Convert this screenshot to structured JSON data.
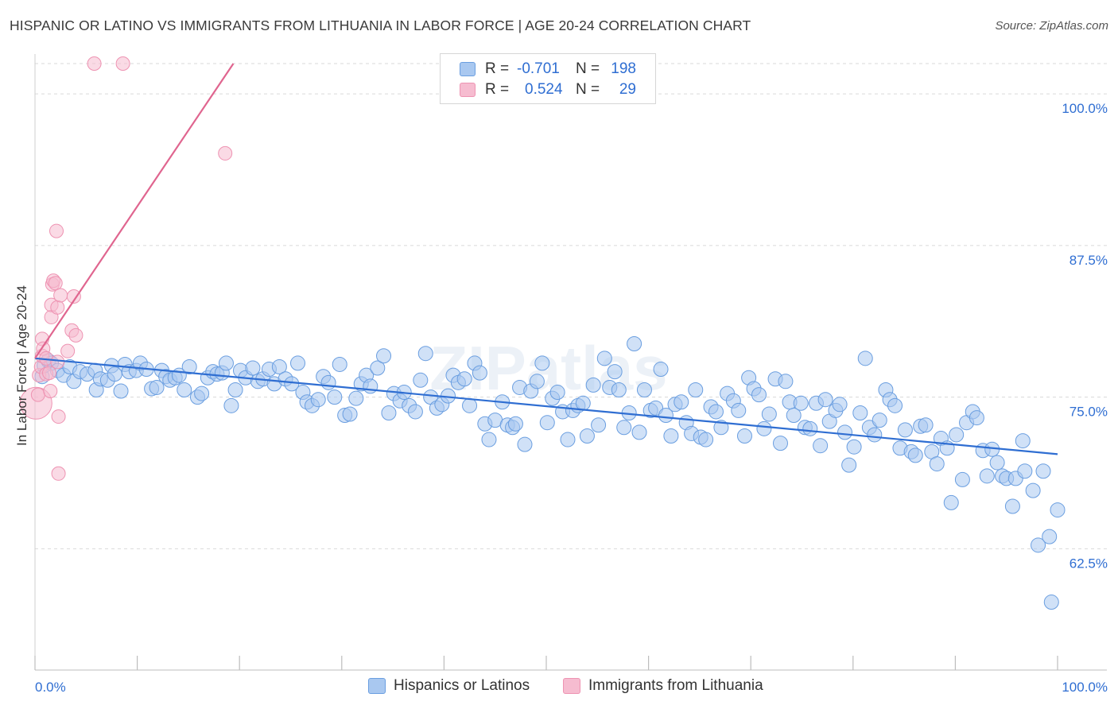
{
  "title": "HISPANIC OR LATINO VS IMMIGRANTS FROM LITHUANIA IN LABOR FORCE | AGE 20-24 CORRELATION CHART",
  "source": "Source: ZipAtlas.com",
  "colors": {
    "blue": "#2f6ed2",
    "blue_fill": "#a9c8f0",
    "blue_stroke": "#6a9ee0",
    "pink": "#e0658f",
    "pink_fill": "#f6bcd0",
    "pink_stroke": "#ee93b2",
    "tick_label": "#2f6ed2",
    "grid": "#d9d9d9"
  },
  "legend": {
    "r_label": "R =",
    "n_label": "N =",
    "rows": [
      {
        "r": "-0.701",
        "n": "198"
      },
      {
        "r": "0.524",
        "n": "29"
      }
    ]
  },
  "chart_data": {
    "type": "scatter",
    "title": "HISPANIC OR LATINO VS IMMIGRANTS FROM LITHUANIA IN LABOR FORCE | AGE 20-24 CORRELATION CHART",
    "xlabel": "",
    "ylabel": "In Labor Force | Age 20-24",
    "xlim": [
      0,
      100
    ],
    "ylim": [
      52.5,
      102.5
    ],
    "x_tick_labels": [
      "0.0%",
      "100.0%"
    ],
    "y_ticks": [
      62.5,
      75.0,
      87.5,
      100.0
    ],
    "y_tick_labels": [
      "62.5%",
      "75.0%",
      "87.5%",
      "100.0%"
    ],
    "grid": true,
    "legend_position": "bottom",
    "series": [
      {
        "name": "Hispanics or Latinos",
        "color": "#2f6ed2",
        "trend": {
          "x": [
            0,
            100
          ],
          "y": [
            78.2,
            70.3
          ]
        },
        "points": [
          [
            0.7,
            76.7
          ],
          [
            0.9,
            77.6
          ],
          [
            1.3,
            78.0
          ],
          [
            1.6,
            77.8
          ],
          [
            2.2,
            77.2
          ],
          [
            2.8,
            76.8
          ],
          [
            3.4,
            77.5
          ],
          [
            3.8,
            76.3
          ],
          [
            4.4,
            77.1
          ],
          [
            5.1,
            76.9
          ],
          [
            5.9,
            77.2
          ],
          [
            6.0,
            75.6
          ],
          [
            6.4,
            76.5
          ],
          [
            7.1,
            76.4
          ],
          [
            7.5,
            77.6
          ],
          [
            7.8,
            76.9
          ],
          [
            8.4,
            75.5
          ],
          [
            8.8,
            77.7
          ],
          [
            9.2,
            77.1
          ],
          [
            9.9,
            77.2
          ],
          [
            10.3,
            77.8
          ],
          [
            10.9,
            77.3
          ],
          [
            11.4,
            75.7
          ],
          [
            11.9,
            75.8
          ],
          [
            12.4,
            77.2
          ],
          [
            12.8,
            76.7
          ],
          [
            13.2,
            76.4
          ],
          [
            13.7,
            76.6
          ],
          [
            14.1,
            76.8
          ],
          [
            14.6,
            75.6
          ],
          [
            15.1,
            77.5
          ],
          [
            15.9,
            75.0
          ],
          [
            16.3,
            75.3
          ],
          [
            16.9,
            76.6
          ],
          [
            17.4,
            77.1
          ],
          [
            17.8,
            76.9
          ],
          [
            18.3,
            77.0
          ],
          [
            18.7,
            77.8
          ],
          [
            19.2,
            74.3
          ],
          [
            19.6,
            75.6
          ],
          [
            20.1,
            77.2
          ],
          [
            20.6,
            76.6
          ],
          [
            21.3,
            77.4
          ],
          [
            21.8,
            76.3
          ],
          [
            22.3,
            76.5
          ],
          [
            22.9,
            77.3
          ],
          [
            23.4,
            76.1
          ],
          [
            23.9,
            77.5
          ],
          [
            24.5,
            76.5
          ],
          [
            25.1,
            76.1
          ],
          [
            25.7,
            77.8
          ],
          [
            26.2,
            75.4
          ],
          [
            26.6,
            74.6
          ],
          [
            27.1,
            74.3
          ],
          [
            27.7,
            74.8
          ],
          [
            28.2,
            76.7
          ],
          [
            28.7,
            76.2
          ],
          [
            29.3,
            75.0
          ],
          [
            29.8,
            77.7
          ],
          [
            30.3,
            73.5
          ],
          [
            30.8,
            73.6
          ],
          [
            31.4,
            74.9
          ],
          [
            31.9,
            76.1
          ],
          [
            32.4,
            76.8
          ],
          [
            32.8,
            75.9
          ],
          [
            33.5,
            77.4
          ],
          [
            34.1,
            78.4
          ],
          [
            34.6,
            73.7
          ],
          [
            35.1,
            75.3
          ],
          [
            35.7,
            74.7
          ],
          [
            36.1,
            75.4
          ],
          [
            36.6,
            74.3
          ],
          [
            37.2,
            73.8
          ],
          [
            37.7,
            76.4
          ],
          [
            38.2,
            78.6
          ],
          [
            38.7,
            75.0
          ],
          [
            39.3,
            74.1
          ],
          [
            39.8,
            74.4
          ],
          [
            40.4,
            75.1
          ],
          [
            40.9,
            76.8
          ],
          [
            41.4,
            76.2
          ],
          [
            42.0,
            76.5
          ],
          [
            42.5,
            74.3
          ],
          [
            43.0,
            77.8
          ],
          [
            43.5,
            77.0
          ],
          [
            44.0,
            72.8
          ],
          [
            44.4,
            71.5
          ],
          [
            45.0,
            73.1
          ],
          [
            45.7,
            74.6
          ],
          [
            46.2,
            72.7
          ],
          [
            46.7,
            72.5
          ],
          [
            47.0,
            72.8
          ],
          [
            47.4,
            75.8
          ],
          [
            47.9,
            71.1
          ],
          [
            48.5,
            75.5
          ],
          [
            49.1,
            76.3
          ],
          [
            49.6,
            77.8
          ],
          [
            50.1,
            72.9
          ],
          [
            50.6,
            74.9
          ],
          [
            51.1,
            75.4
          ],
          [
            51.6,
            73.8
          ],
          [
            52.1,
            71.5
          ],
          [
            52.6,
            73.9
          ],
          [
            53.1,
            74.3
          ],
          [
            53.6,
            74.5
          ],
          [
            54.0,
            71.8
          ],
          [
            54.6,
            76.0
          ],
          [
            55.1,
            72.7
          ],
          [
            55.7,
            78.2
          ],
          [
            56.2,
            75.8
          ],
          [
            56.7,
            77.1
          ],
          [
            57.1,
            75.6
          ],
          [
            57.6,
            72.5
          ],
          [
            58.1,
            73.7
          ],
          [
            58.6,
            79.4
          ],
          [
            59.1,
            72.1
          ],
          [
            59.6,
            75.6
          ],
          [
            60.2,
            73.9
          ],
          [
            60.7,
            74.1
          ],
          [
            61.2,
            77.3
          ],
          [
            61.7,
            73.5
          ],
          [
            62.2,
            71.8
          ],
          [
            62.6,
            74.4
          ],
          [
            63.2,
            74.6
          ],
          [
            63.7,
            72.9
          ],
          [
            64.2,
            72.0
          ],
          [
            64.6,
            75.6
          ],
          [
            65.1,
            71.7
          ],
          [
            65.6,
            71.5
          ],
          [
            66.1,
            74.2
          ],
          [
            66.6,
            73.8
          ],
          [
            67.1,
            72.5
          ],
          [
            67.7,
            75.3
          ],
          [
            68.3,
            74.7
          ],
          [
            68.8,
            73.9
          ],
          [
            69.4,
            71.8
          ],
          [
            69.8,
            76.6
          ],
          [
            70.3,
            75.7
          ],
          [
            70.8,
            75.2
          ],
          [
            71.3,
            72.4
          ],
          [
            71.8,
            73.6
          ],
          [
            72.4,
            76.5
          ],
          [
            72.9,
            71.2
          ],
          [
            73.4,
            76.3
          ],
          [
            73.8,
            74.6
          ],
          [
            74.2,
            73.5
          ],
          [
            74.9,
            74.5
          ],
          [
            75.3,
            72.5
          ],
          [
            75.8,
            72.4
          ],
          [
            76.4,
            74.5
          ],
          [
            76.8,
            71.0
          ],
          [
            77.3,
            74.8
          ],
          [
            77.7,
            73.0
          ],
          [
            78.3,
            73.9
          ],
          [
            78.7,
            74.4
          ],
          [
            79.2,
            72.1
          ],
          [
            79.6,
            69.4
          ],
          [
            80.1,
            70.9
          ],
          [
            80.7,
            73.7
          ],
          [
            81.2,
            78.2
          ],
          [
            81.6,
            72.5
          ],
          [
            82.1,
            71.9
          ],
          [
            82.6,
            73.1
          ],
          [
            83.2,
            75.6
          ],
          [
            83.6,
            74.8
          ],
          [
            84.1,
            74.3
          ],
          [
            84.6,
            70.8
          ],
          [
            85.1,
            72.3
          ],
          [
            85.7,
            70.5
          ],
          [
            86.1,
            70.2
          ],
          [
            86.6,
            72.6
          ],
          [
            87.1,
            72.7
          ],
          [
            87.7,
            70.5
          ],
          [
            88.2,
            69.5
          ],
          [
            88.6,
            71.6
          ],
          [
            89.2,
            70.8
          ],
          [
            89.6,
            66.3
          ],
          [
            90.1,
            71.9
          ],
          [
            90.7,
            68.2
          ],
          [
            91.1,
            72.9
          ],
          [
            91.7,
            73.8
          ],
          [
            92.1,
            73.3
          ],
          [
            92.7,
            70.6
          ],
          [
            93.1,
            68.5
          ],
          [
            93.6,
            70.7
          ],
          [
            94.1,
            69.6
          ],
          [
            94.6,
            68.5
          ],
          [
            95.0,
            68.3
          ],
          [
            95.6,
            66.0
          ],
          [
            95.9,
            68.3
          ],
          [
            96.6,
            71.4
          ],
          [
            96.8,
            68.9
          ],
          [
            97.6,
            67.3
          ],
          [
            98.1,
            62.8
          ],
          [
            98.6,
            68.9
          ],
          [
            99.2,
            63.5
          ],
          [
            99.4,
            58.1
          ],
          [
            100.0,
            65.7
          ]
        ]
      },
      {
        "name": "Immigrants from Lithuania",
        "color": "#e0658f",
        "trend": {
          "x": [
            0,
            19.4
          ],
          "y": [
            78.2,
            102.5
          ]
        },
        "points": [
          [
            0.1,
            74.5
          ],
          [
            0.3,
            75.2
          ],
          [
            0.4,
            76.8
          ],
          [
            0.6,
            77.5
          ],
          [
            0.7,
            78.4
          ],
          [
            0.7,
            79.8
          ],
          [
            0.8,
            79.0
          ],
          [
            1.1,
            76.9
          ],
          [
            1.1,
            78.2
          ],
          [
            1.4,
            77.0
          ],
          [
            1.5,
            75.5
          ],
          [
            1.6,
            81.6
          ],
          [
            1.6,
            82.6
          ],
          [
            1.7,
            84.3
          ],
          [
            1.8,
            84.6
          ],
          [
            2.0,
            84.4
          ],
          [
            2.1,
            88.7
          ],
          [
            2.2,
            82.4
          ],
          [
            2.2,
            77.9
          ],
          [
            2.3,
            73.4
          ],
          [
            2.3,
            68.7
          ],
          [
            2.5,
            83.4
          ],
          [
            3.2,
            78.8
          ],
          [
            3.6,
            80.5
          ],
          [
            3.8,
            83.3
          ],
          [
            4.0,
            80.1
          ],
          [
            5.8,
            102.5
          ],
          [
            8.6,
            102.5
          ],
          [
            18.6,
            95.1
          ]
        ]
      }
    ]
  },
  "bottom_legend": [
    "Hispanics or Latinos",
    "Immigrants from Lithuania"
  ]
}
